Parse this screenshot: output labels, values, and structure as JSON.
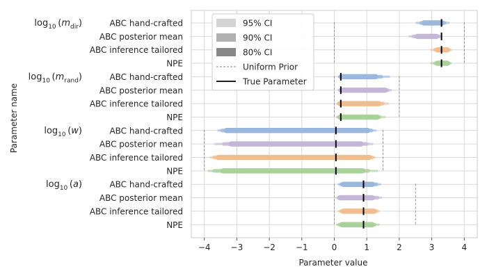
{
  "chart_data": {
    "type": "interval",
    "xlabel": "Parameter value",
    "ylabel": "Parameter name",
    "xlim": [
      -4.4,
      4.4
    ],
    "xticks": [
      -4,
      -3,
      -2,
      -1,
      0,
      1,
      2,
      3,
      4
    ],
    "xtick_labels": [
      "−4",
      "−3",
      "−2",
      "−1",
      "0",
      "1",
      "2",
      "3",
      "4"
    ],
    "grid": true,
    "legend_position": "upper-left",
    "legend": [
      {
        "label": "95% CI",
        "kind": "patch",
        "color": "#d4d4d4"
      },
      {
        "label": "90% CI",
        "kind": "patch",
        "color": "#b0b0b0"
      },
      {
        "label": "80% CI",
        "kind": "patch",
        "color": "#888888"
      },
      {
        "label": "Uniform Prior",
        "kind": "dashed-line",
        "color": "#888888"
      },
      {
        "label": "True Parameter",
        "kind": "line",
        "color": "#000000"
      }
    ],
    "methods": [
      {
        "name": "ABC hand-crafted",
        "color": "#9ab8dd"
      },
      {
        "name": "ABC posterior mean",
        "color": "#c5b5d9"
      },
      {
        "name": "ABC inference tailored",
        "color": "#f1bd8f"
      },
      {
        "name": "NPE",
        "color": "#a9d29b"
      }
    ],
    "parameters": [
      {
        "label_base": "log",
        "label_sub": "10",
        "label_arg": "m",
        "label_argsub": "dir",
        "prior": [
          0,
          4
        ],
        "true_value": 3.3,
        "rows": [
          {
            "method": "ABC hand-crafted",
            "ci95": [
              2.5,
              3.55
            ],
            "ci90": [
              2.62,
              3.45
            ],
            "ci80": [
              2.68,
              3.4
            ]
          },
          {
            "method": "ABC posterior mean",
            "ci95": [
              2.28,
              3.32
            ],
            "ci90": [
              2.38,
              3.28
            ],
            "ci80": [
              2.48,
              3.22
            ]
          },
          {
            "method": "ABC inference tailored",
            "ci95": [
              2.95,
              3.62
            ],
            "ci90": [
              3.05,
              3.58
            ],
            "ci80": [
              3.1,
              3.55
            ]
          },
          {
            "method": "NPE",
            "ci95": [
              2.95,
              3.62
            ],
            "ci90": [
              3.05,
              3.58
            ],
            "ci80": [
              3.1,
              3.55
            ]
          }
        ]
      },
      {
        "label_base": "log",
        "label_sub": "10",
        "label_arg": "m",
        "label_argsub": "rand",
        "prior": [
          0,
          2
        ],
        "true_value": 0.2,
        "rows": [
          {
            "method": "ABC hand-crafted",
            "ci95": [
              0.1,
              1.72
            ],
            "ci90": [
              0.12,
              1.5
            ],
            "ci80": [
              0.15,
              1.35
            ]
          },
          {
            "method": "ABC posterior mean",
            "ci95": [
              0.1,
              1.78
            ],
            "ci90": [
              0.12,
              1.7
            ],
            "ci80": [
              0.15,
              1.65
            ]
          },
          {
            "method": "ABC inference tailored",
            "ci95": [
              0.05,
              1.68
            ],
            "ci90": [
              0.08,
              1.55
            ],
            "ci80": [
              0.1,
              1.45
            ]
          },
          {
            "method": "NPE",
            "ci95": [
              0.05,
              1.58
            ],
            "ci90": [
              0.08,
              1.45
            ],
            "ci80": [
              0.1,
              1.4
            ]
          }
        ]
      },
      {
        "label_base": "log",
        "label_sub": "10",
        "label_arg": "w",
        "label_argsub": "",
        "prior": [
          -4,
          1.5
        ],
        "true_value": 0.05,
        "rows": [
          {
            "method": "ABC hand-crafted",
            "ci95": [
              -3.6,
              1.3
            ],
            "ci90": [
              -3.5,
              1.2
            ],
            "ci80": [
              -3.4,
              1.1
            ]
          },
          {
            "method": "ABC posterior mean",
            "ci95": [
              -3.7,
              1.2
            ],
            "ci90": [
              -3.45,
              1.05
            ],
            "ci80": [
              -3.25,
              0.9
            ]
          },
          {
            "method": "ABC inference tailored",
            "ci95": [
              -3.85,
              1.28
            ],
            "ci90": [
              -3.75,
              1.22
            ],
            "ci80": [
              -3.65,
              1.15
            ]
          },
          {
            "method": "NPE",
            "ci95": [
              -3.9,
              1.35
            ],
            "ci90": [
              -3.75,
              1.1
            ],
            "ci80": [
              -3.5,
              0.95
            ]
          }
        ]
      },
      {
        "label_base": "log",
        "label_sub": "10",
        "label_arg": "a",
        "label_argsub": "",
        "prior": [
          0,
          2.5
        ],
        "true_value": 0.9,
        "rows": [
          {
            "method": "ABC hand-crafted",
            "ci95": [
              0.1,
              1.45
            ],
            "ci90": [
              0.15,
              1.35
            ],
            "ci80": [
              0.2,
              1.25
            ]
          },
          {
            "method": "ABC posterior mean",
            "ci95": [
              0.05,
              1.48
            ],
            "ci90": [
              0.08,
              1.38
            ],
            "ci80": [
              0.1,
              1.25
            ]
          },
          {
            "method": "ABC inference tailored",
            "ci95": [
              0.1,
              1.4
            ],
            "ci90": [
              0.15,
              1.35
            ],
            "ci80": [
              0.2,
              1.3
            ]
          },
          {
            "method": "NPE",
            "ci95": [
              0.05,
              1.4
            ],
            "ci90": [
              0.1,
              1.3
            ],
            "ci80": [
              0.15,
              1.25
            ]
          }
        ]
      }
    ]
  }
}
